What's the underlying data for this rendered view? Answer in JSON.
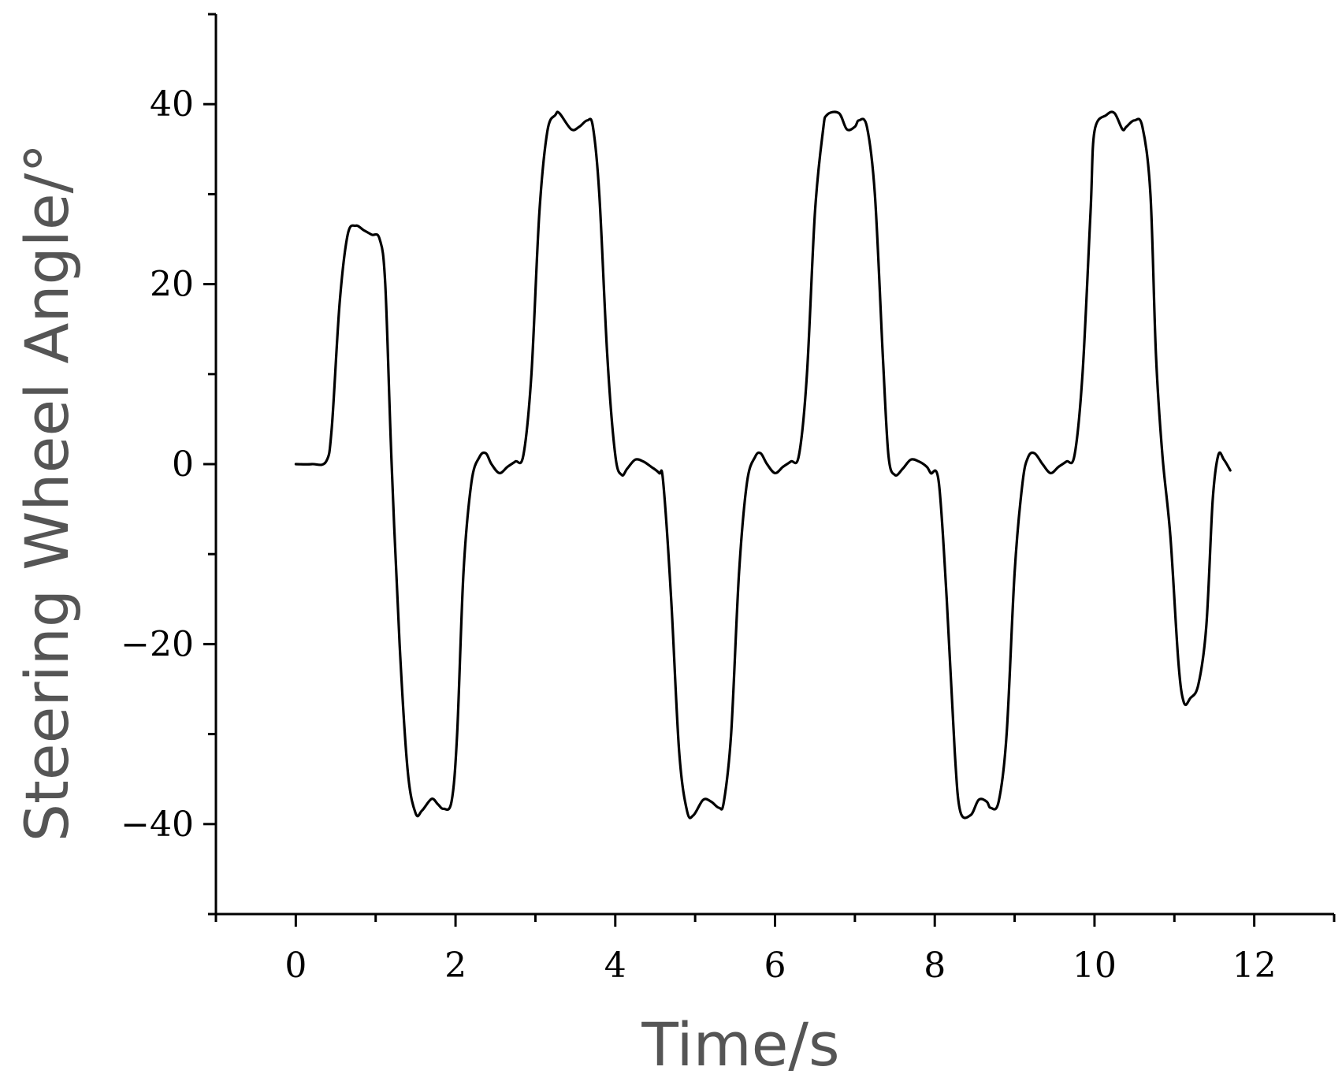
{
  "chart_data": {
    "type": "line",
    "title": "",
    "xlabel": "Time/s",
    "ylabel": "Steering Wheel Angle/°",
    "xlim": [
      -1,
      13
    ],
    "ylim": [
      -50,
      50
    ],
    "x_ticks": [
      0,
      2,
      4,
      6,
      8,
      10,
      12
    ],
    "y_ticks": [
      -40,
      -20,
      0,
      20,
      40
    ],
    "x_tick_labels": [
      "0",
      "2",
      "4",
      "6",
      "8",
      "10",
      "12"
    ],
    "y_tick_labels": [
      "−40",
      "−20",
      "0",
      "20",
      "40"
    ],
    "grid": false,
    "legend": "none",
    "line_color": "#000000",
    "series": [
      {
        "x": [
          0,
          0.2,
          0.38,
          0.45,
          0.55,
          0.65,
          0.75,
          0.85,
          0.95,
          1.05,
          1.12,
          1.2,
          1.3,
          1.4,
          1.5,
          1.58,
          1.7,
          1.78,
          1.85,
          1.95,
          2.02,
          2.1,
          2.2,
          2.3,
          2.38,
          2.45,
          2.55,
          2.65,
          2.75,
          2.85,
          2.95,
          3.05,
          3.15,
          3.25,
          3.3,
          3.45,
          3.55,
          3.65,
          3.72,
          3.8,
          3.9,
          4.0,
          4.08,
          4.15,
          4.25,
          4.35,
          4.45,
          4.55,
          4.6,
          4.7,
          4.8,
          4.9,
          4.98,
          5.1,
          5.2,
          5.3,
          5.36,
          5.45,
          5.55,
          5.65,
          5.75,
          5.82,
          5.9,
          6.0,
          6.1,
          6.2,
          6.3,
          6.4,
          6.5,
          6.6,
          6.65,
          6.8,
          6.9,
          7.0,
          7.05,
          7.15,
          7.25,
          7.35,
          7.42,
          7.5,
          7.6,
          7.7,
          7.8,
          7.9,
          7.95,
          8.05,
          8.15,
          8.25,
          8.32,
          8.45,
          8.55,
          8.65,
          8.7,
          8.8,
          8.9,
          9.0,
          9.1,
          9.17,
          9.25,
          9.35,
          9.45,
          9.55,
          9.65,
          9.75,
          9.85,
          9.95,
          10.0,
          10.15,
          10.25,
          10.35,
          10.4,
          10.5,
          10.6,
          10.7,
          10.77,
          10.85,
          10.95,
          11.05,
          11.12,
          11.2,
          11.3,
          11.4,
          11.48,
          11.55,
          11.62,
          11.7
        ],
        "y": [
          0,
          0,
          0.3,
          4,
          18,
          25.5,
          26.5,
          26,
          25.5,
          25,
          20,
          0,
          -20,
          -34,
          -38.8,
          -38.5,
          -37.2,
          -37.8,
          -38.3,
          -37.5,
          -30,
          -12,
          -2,
          0.8,
          1.2,
          0,
          -1,
          -0.3,
          0.3,
          1,
          10,
          28,
          37,
          38.8,
          39,
          37.2,
          37.5,
          38.2,
          37.5,
          30,
          12,
          1,
          -1.2,
          -0.5,
          0.5,
          0.3,
          -0.3,
          -1,
          -2,
          -15,
          -32,
          -38.6,
          -39,
          -37.3,
          -37.5,
          -38.2,
          -37.5,
          -30,
          -12,
          -2,
          0.8,
          1.2,
          0,
          -1,
          -0.3,
          0.3,
          1,
          10,
          28,
          37,
          38.8,
          39,
          37.2,
          37.5,
          38.2,
          37.5,
          30,
          12,
          1,
          -1.2,
          -0.5,
          0.5,
          0.3,
          -0.3,
          -1,
          -2,
          -15,
          -32,
          -38.6,
          -39,
          -37.3,
          -37.5,
          -38.2,
          -37.5,
          -30,
          -12,
          -2,
          0.8,
          1.2,
          0,
          -1,
          -0.3,
          0.3,
          1,
          10,
          28,
          37,
          38.8,
          39,
          37.2,
          37.5,
          38.2,
          37.5,
          30,
          12,
          1,
          -8,
          -22,
          -26.5,
          -26,
          -24.5,
          -18,
          -4,
          1,
          0.5,
          -0.7
        ]
      }
    ]
  }
}
